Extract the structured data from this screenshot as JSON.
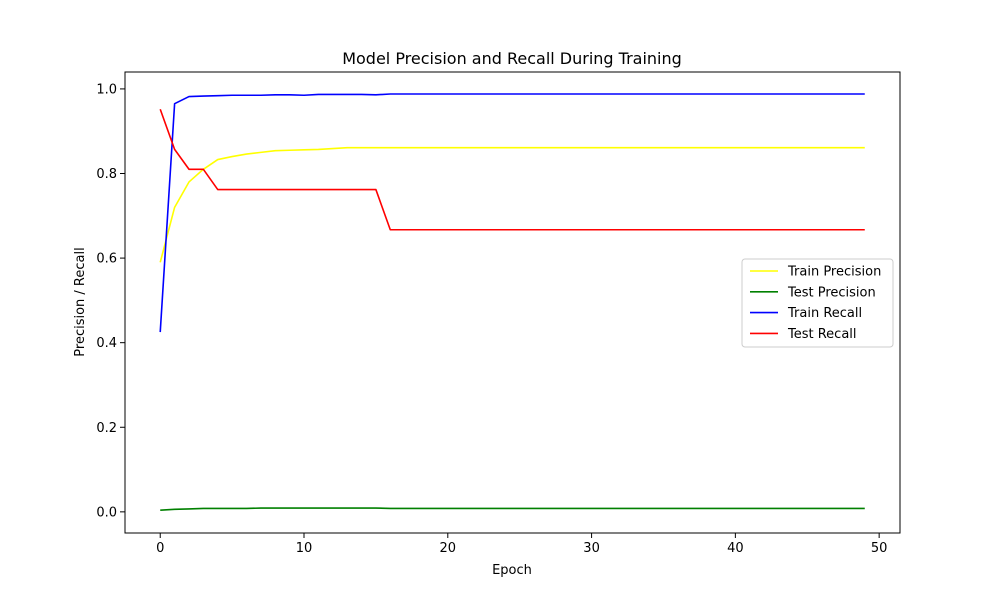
{
  "chart_data": {
    "type": "line",
    "title": "Model Precision and Recall During Training",
    "xlabel": "Epoch",
    "ylabel": "Precision / Recall",
    "xlim": [
      -2.45,
      51.45
    ],
    "ylim": [
      -0.05,
      1.04
    ],
    "xticks": [
      0,
      10,
      20,
      30,
      40,
      50
    ],
    "yticks": [
      0.0,
      0.2,
      0.4,
      0.6,
      0.8,
      1.0
    ],
    "xtick_labels": [
      "0",
      "10",
      "20",
      "30",
      "40",
      "50"
    ],
    "ytick_labels": [
      "0.0",
      "0.2",
      "0.4",
      "0.6",
      "0.8",
      "1.0"
    ],
    "grid": false,
    "legend_position": "center-right",
    "x": [
      0,
      1,
      2,
      3,
      4,
      5,
      6,
      7,
      8,
      9,
      10,
      11,
      12,
      13,
      14,
      15,
      16,
      17,
      18,
      19,
      20,
      21,
      22,
      23,
      24,
      25,
      26,
      27,
      28,
      29,
      30,
      31,
      32,
      33,
      34,
      35,
      36,
      37,
      38,
      39,
      40,
      41,
      42,
      43,
      44,
      45,
      46,
      47,
      48,
      49
    ],
    "series": [
      {
        "name": "Train Precision",
        "color": "#ffff00",
        "values": [
          0.59,
          0.72,
          0.78,
          0.81,
          0.833,
          0.84,
          0.846,
          0.85,
          0.854,
          0.855,
          0.856,
          0.857,
          0.859,
          0.861,
          0.861,
          0.861,
          0.861,
          0.861,
          0.861,
          0.861,
          0.861,
          0.861,
          0.861,
          0.861,
          0.861,
          0.861,
          0.861,
          0.861,
          0.861,
          0.861,
          0.861,
          0.861,
          0.861,
          0.861,
          0.861,
          0.861,
          0.861,
          0.861,
          0.861,
          0.861,
          0.861,
          0.861,
          0.861,
          0.861,
          0.861,
          0.861,
          0.861,
          0.861,
          0.861,
          0.861
        ]
      },
      {
        "name": "Test Precision",
        "color": "#008000",
        "values": [
          0.004,
          0.006,
          0.007,
          0.008,
          0.008,
          0.008,
          0.008,
          0.009,
          0.009,
          0.009,
          0.009,
          0.009,
          0.009,
          0.009,
          0.009,
          0.009,
          0.008,
          0.008,
          0.008,
          0.008,
          0.008,
          0.008,
          0.008,
          0.008,
          0.008,
          0.008,
          0.008,
          0.008,
          0.008,
          0.008,
          0.008,
          0.008,
          0.008,
          0.008,
          0.008,
          0.008,
          0.008,
          0.008,
          0.008,
          0.008,
          0.008,
          0.008,
          0.008,
          0.008,
          0.008,
          0.008,
          0.008,
          0.008,
          0.008,
          0.008
        ]
      },
      {
        "name": "Train Recall",
        "color": "#0000ff",
        "values": [
          0.425,
          0.965,
          0.982,
          0.983,
          0.984,
          0.985,
          0.985,
          0.985,
          0.986,
          0.986,
          0.985,
          0.987,
          0.987,
          0.987,
          0.987,
          0.986,
          0.988,
          0.988,
          0.988,
          0.988,
          0.988,
          0.988,
          0.988,
          0.988,
          0.988,
          0.988,
          0.988,
          0.988,
          0.988,
          0.988,
          0.988,
          0.988,
          0.988,
          0.988,
          0.988,
          0.988,
          0.988,
          0.988,
          0.988,
          0.988,
          0.988,
          0.988,
          0.988,
          0.988,
          0.988,
          0.988,
          0.988,
          0.988,
          0.988,
          0.988
        ]
      },
      {
        "name": "Test Recall",
        "color": "#ff0000",
        "values": [
          0.952,
          0.857,
          0.81,
          0.81,
          0.762,
          0.762,
          0.762,
          0.762,
          0.762,
          0.762,
          0.762,
          0.762,
          0.762,
          0.762,
          0.762,
          0.762,
          0.667,
          0.667,
          0.667,
          0.667,
          0.667,
          0.667,
          0.667,
          0.667,
          0.667,
          0.667,
          0.667,
          0.667,
          0.667,
          0.667,
          0.667,
          0.667,
          0.667,
          0.667,
          0.667,
          0.667,
          0.667,
          0.667,
          0.667,
          0.667,
          0.667,
          0.667,
          0.667,
          0.667,
          0.667,
          0.667,
          0.667,
          0.667,
          0.667,
          0.667
        ]
      }
    ]
  }
}
